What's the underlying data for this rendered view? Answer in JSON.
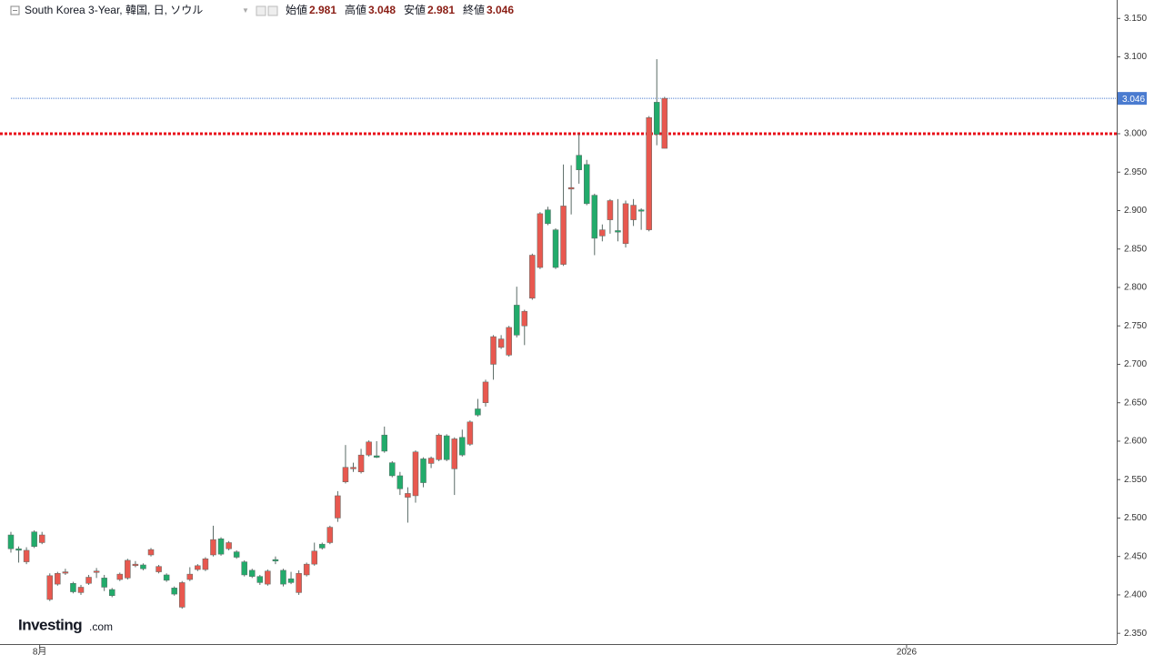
{
  "chart_data": {
    "type": "candlestick",
    "title": "South Korea 3-Year, 韓国, 日, ソウル",
    "ohlc_labels": {
      "open": "始値",
      "high": "高値",
      "low": "安値",
      "close": "終値"
    },
    "watermark": {
      "brand": "Investing",
      "suffix": ".com"
    },
    "up_color": "#e8584f",
    "down_color": "#22ab6b",
    "open": [
      2.478,
      2.46,
      2.443,
      2.482,
      2.468,
      2.394,
      2.414,
      2.429,
      2.415,
      2.403,
      2.415,
      2.43,
      2.422,
      2.407,
      2.42,
      2.422,
      2.438,
      2.439,
      2.452,
      2.43,
      2.426,
      2.409,
      2.384,
      2.42,
      2.433,
      2.433,
      2.452,
      2.473,
      2.46,
      2.456,
      2.443,
      2.432,
      2.424,
      2.414,
      2.446,
      2.432,
      2.421,
      2.403,
      2.426,
      2.44,
      2.466,
      2.468,
      2.5,
      2.547,
      2.564,
      2.56,
      2.582,
      2.581,
      2.608,
      2.572,
      2.555,
      2.527,
      2.529,
      2.577,
      2.571,
      2.576,
      2.607,
      2.564,
      2.605,
      2.596,
      2.642,
      2.65,
      2.7,
      2.722,
      2.712,
      2.777,
      2.75,
      2.786,
      2.826,
      2.901,
      2.875,
      2.83,
      2.928,
      2.972,
      2.96,
      2.92,
      2.867,
      2.888,
      2.874,
      2.857,
      2.888,
      2.901,
      2.875,
      3.041,
      2.981
    ],
    "high": [
      2.482,
      2.463,
      2.462,
      2.484,
      2.482,
      2.428,
      2.43,
      2.434,
      2.417,
      2.413,
      2.426,
      2.435,
      2.426,
      2.409,
      2.429,
      2.447,
      2.444,
      2.441,
      2.461,
      2.439,
      2.428,
      2.411,
      2.418,
      2.436,
      2.44,
      2.449,
      2.49,
      2.475,
      2.47,
      2.458,
      2.445,
      2.434,
      2.426,
      2.433,
      2.45,
      2.434,
      2.43,
      2.432,
      2.442,
      2.468,
      2.468,
      2.49,
      2.535,
      2.595,
      2.572,
      2.59,
      2.601,
      2.6,
      2.619,
      2.574,
      2.56,
      2.54,
      2.588,
      2.579,
      2.58,
      2.61,
      2.609,
      2.605,
      2.615,
      2.627,
      2.655,
      2.68,
      2.738,
      2.738,
      2.75,
      2.801,
      2.771,
      2.844,
      2.898,
      2.905,
      2.877,
      2.96,
      2.959,
      3.0,
      2.966,
      2.922,
      2.882,
      2.915,
      2.915,
      2.913,
      2.915,
      2.903,
      3.023,
      3.097,
      3.048
    ],
    "low": [
      2.455,
      2.442,
      2.44,
      2.461,
      2.466,
      2.392,
      2.412,
      2.426,
      2.402,
      2.4,
      2.413,
      2.422,
      2.405,
      2.397,
      2.418,
      2.42,
      2.436,
      2.432,
      2.45,
      2.428,
      2.417,
      2.399,
      2.382,
      2.418,
      2.431,
      2.431,
      2.45,
      2.451,
      2.458,
      2.447,
      2.424,
      2.422,
      2.413,
      2.412,
      2.44,
      2.411,
      2.414,
      2.4,
      2.424,
      2.438,
      2.459,
      2.466,
      2.495,
      2.545,
      2.56,
      2.558,
      2.58,
      2.578,
      2.585,
      2.553,
      2.53,
      2.494,
      2.52,
      2.54,
      2.565,
      2.574,
      2.574,
      2.53,
      2.58,
      2.594,
      2.632,
      2.645,
      2.68,
      2.72,
      2.71,
      2.735,
      2.725,
      2.784,
      2.824,
      2.881,
      2.824,
      2.828,
      2.895,
      2.935,
      2.907,
      2.842,
      2.86,
      2.87,
      2.86,
      2.852,
      2.88,
      2.875,
      2.873,
      2.985,
      2.981
    ],
    "close": [
      2.46,
      2.458,
      2.458,
      2.463,
      2.478,
      2.425,
      2.428,
      2.43,
      2.404,
      2.41,
      2.423,
      2.431,
      2.41,
      2.399,
      2.427,
      2.445,
      2.44,
      2.434,
      2.459,
      2.437,
      2.419,
      2.401,
      2.416,
      2.427,
      2.438,
      2.447,
      2.472,
      2.453,
      2.468,
      2.449,
      2.426,
      2.424,
      2.416,
      2.431,
      2.444,
      2.414,
      2.416,
      2.428,
      2.44,
      2.457,
      2.461,
      2.488,
      2.529,
      2.566,
      2.566,
      2.582,
      2.599,
      2.579,
      2.587,
      2.555,
      2.538,
      2.532,
      2.586,
      2.546,
      2.578,
      2.608,
      2.576,
      2.603,
      2.582,
      2.625,
      2.634,
      2.677,
      2.736,
      2.733,
      2.748,
      2.738,
      2.769,
      2.842,
      2.896,
      2.883,
      2.826,
      2.906,
      2.93,
      2.953,
      2.909,
      2.864,
      2.875,
      2.913,
      2.872,
      2.909,
      2.907,
      2.9,
      3.021,
      2.999,
      3.046
    ],
    "level_line": {
      "value": 3.0,
      "color": "#e8101a"
    },
    "last_price_color": "#4a7bd0",
    "xlim": [
      -1.4,
      142.1
    ],
    "xticks": [
      {
        "value": 3.7,
        "label": "8月"
      },
      {
        "value": 115.1,
        "label": "2026"
      }
    ],
    "ylim": [
      2.336,
      3.174
    ],
    "yticks": [
      {
        "value": 2.35,
        "label": "2.350"
      },
      {
        "value": 2.4,
        "label": "2.400"
      },
      {
        "value": 2.45,
        "label": "2.450"
      },
      {
        "value": 2.5,
        "label": "2.500"
      },
      {
        "value": 2.55,
        "label": "2.550"
      },
      {
        "value": 2.6,
        "label": "2.600"
      },
      {
        "value": 2.65,
        "label": "2.650"
      },
      {
        "value": 2.7,
        "label": "2.700"
      },
      {
        "value": 2.75,
        "label": "2.750"
      },
      {
        "value": 2.8,
        "label": "2.800"
      },
      {
        "value": 2.85,
        "label": "2.850"
      },
      {
        "value": 2.9,
        "label": "2.900"
      },
      {
        "value": 2.95,
        "label": "2.950"
      },
      {
        "value": 3.0,
        "label": "3.000"
      },
      {
        "value": 3.1,
        "label": "3.100"
      },
      {
        "value": 3.15,
        "label": "3.150"
      }
    ]
  }
}
